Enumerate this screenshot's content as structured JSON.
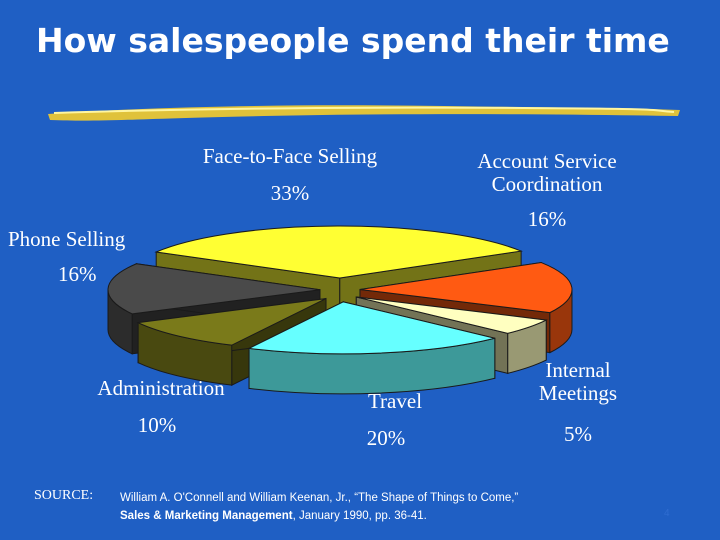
{
  "slide": {
    "title": "How salespeople spend their time",
    "page_number": "4",
    "source_label": "SOURCE:",
    "source_line1": "William A. O'Connell and William Keenan, Jr., “The Shape of Things to Come,”",
    "source_pub": "Sales & Marketing Management",
    "source_line2_rest": ", January 1990, pp. 36-41."
  },
  "chart_data": {
    "type": "pie",
    "title": "",
    "slices": [
      {
        "label": "Face-to-Face Selling",
        "value": 33,
        "value_label": "33%",
        "color": "#ffff33"
      },
      {
        "label": "Account Service Coordination",
        "value": 16,
        "value_label": "16%",
        "color": "#ff5a12"
      },
      {
        "label": "Internal Meetings",
        "value": 5,
        "value_label": "5%",
        "color": "#ffffc0"
      },
      {
        "label": "Travel",
        "value": 20,
        "value_label": "20%",
        "color": "#66ffff"
      },
      {
        "label": "Administration",
        "value": 10,
        "value_label": "10%",
        "color": "#7a7a1a"
      },
      {
        "label": "Phone Selling",
        "value": 16,
        "value_label": "16%",
        "color": "#4a4a4a"
      }
    ]
  }
}
